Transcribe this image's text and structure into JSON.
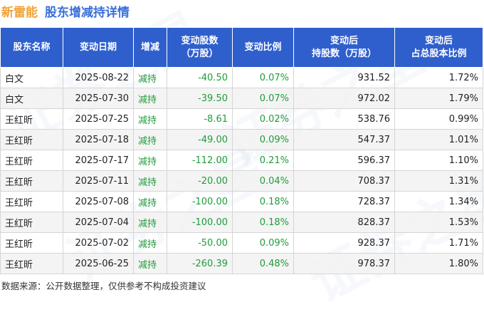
{
  "title": {
    "company": "新雷能",
    "text": "股东增减持详情"
  },
  "watermark": "证券之星",
  "table": {
    "headers": {
      "name": "股东名称",
      "date": "变动日期",
      "action": "增减",
      "shares_line1": "变动股数",
      "shares_line2": "（万股）",
      "ratio": "变动比例",
      "hold_line1": "变动后",
      "hold_line2": "持股数（万股）",
      "pct_line1": "变动后",
      "pct_line2": "占总股本比例"
    },
    "rows": [
      {
        "name": "白文",
        "date": "2025-08-22",
        "action": "减持",
        "change": "-40.50",
        "ratio": "0.07%",
        "after": "931.52",
        "pct": "1.72%"
      },
      {
        "name": "白文",
        "date": "2025-07-30",
        "action": "减持",
        "change": "-39.50",
        "ratio": "0.07%",
        "after": "972.02",
        "pct": "1.79%"
      },
      {
        "name": "王红昕",
        "date": "2025-07-25",
        "action": "减持",
        "change": "-8.61",
        "ratio": "0.02%",
        "after": "538.76",
        "pct": "0.99%"
      },
      {
        "name": "王红昕",
        "date": "2025-07-18",
        "action": "减持",
        "change": "-49.00",
        "ratio": "0.09%",
        "after": "547.37",
        "pct": "1.01%"
      },
      {
        "name": "王红昕",
        "date": "2025-07-17",
        "action": "减持",
        "change": "-112.00",
        "ratio": "0.21%",
        "after": "596.37",
        "pct": "1.10%"
      },
      {
        "name": "王红昕",
        "date": "2025-07-11",
        "action": "减持",
        "change": "-20.00",
        "ratio": "0.04%",
        "after": "708.37",
        "pct": "1.31%"
      },
      {
        "name": "王红昕",
        "date": "2025-07-08",
        "action": "减持",
        "change": "-100.00",
        "ratio": "0.18%",
        "after": "728.37",
        "pct": "1.34%"
      },
      {
        "name": "王红昕",
        "date": "2025-07-04",
        "action": "减持",
        "change": "-100.00",
        "ratio": "0.18%",
        "after": "828.37",
        "pct": "1.53%"
      },
      {
        "name": "王红昕",
        "date": "2025-07-02",
        "action": "减持",
        "change": "-50.00",
        "ratio": "0.09%",
        "after": "928.37",
        "pct": "1.71%"
      },
      {
        "name": "王红昕",
        "date": "2025-06-25",
        "action": "减持",
        "change": "-260.39",
        "ratio": "0.48%",
        "after": "978.37",
        "pct": "1.80%"
      }
    ]
  },
  "footer": "数据来源：公开数据整理，仅供参考不构成投资建议",
  "colors": {
    "header_bg": "#2f5fcd",
    "company": "#f0a33a",
    "title": "#3a6fd8",
    "decrease": "#1f9d3a"
  }
}
